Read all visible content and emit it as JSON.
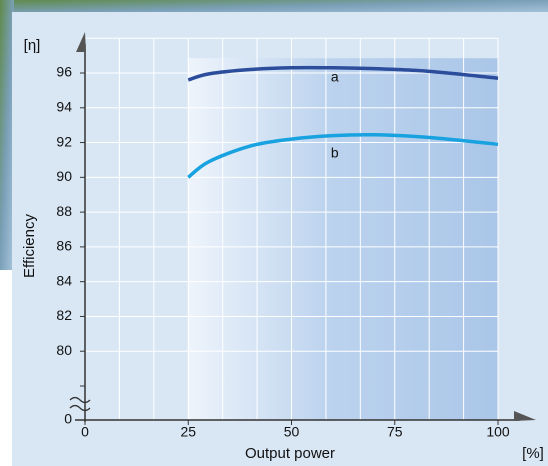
{
  "chart_data": {
    "type": "line",
    "y_unit_label": "[η]",
    "y_label": "Efficiency",
    "x_label": "Output power",
    "x_unit_label": "[%]",
    "x": [
      25,
      30,
      40,
      50,
      60,
      70,
      80,
      90,
      100
    ],
    "series": [
      {
        "name": "a",
        "color": "#2b4d9b",
        "values": [
          95.6,
          95.95,
          96.2,
          96.3,
          96.3,
          96.25,
          96.15,
          95.95,
          95.7
        ]
      },
      {
        "name": "b",
        "color": "#19a2e0",
        "values": [
          90.0,
          90.9,
          91.8,
          92.2,
          92.4,
          92.45,
          92.35,
          92.15,
          91.9
        ]
      }
    ],
    "xlim": [
      0,
      100
    ],
    "xticks": [
      0,
      25,
      50,
      75,
      100
    ],
    "ylim": [
      0,
      98
    ],
    "yticks": [
      0,
      80,
      82,
      84,
      86,
      88,
      90,
      92,
      94,
      96
    ],
    "grid": true
  }
}
